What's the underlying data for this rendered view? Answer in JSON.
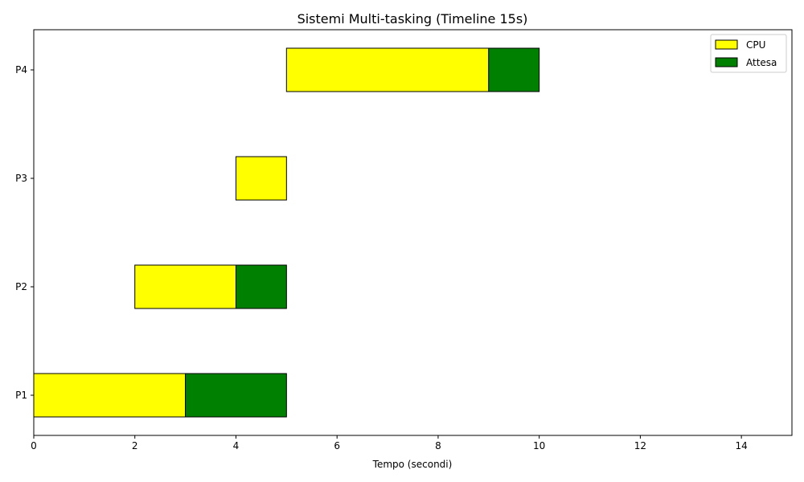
{
  "chart_data": {
    "type": "gantt",
    "title": "Sistemi Multi-tasking (Timeline 15s)",
    "xlabel": "Tempo (secondi)",
    "ylabel": "",
    "xlim": [
      0,
      15
    ],
    "x_ticks": [
      0,
      2,
      4,
      6,
      8,
      10,
      12,
      14
    ],
    "categories": [
      "P1",
      "P2",
      "P3",
      "P4"
    ],
    "grid": false,
    "legend_position": "top-right",
    "colors": {
      "CPU": "#ffff00",
      "Attesa": "#008000",
      "edge": "#000000"
    },
    "series": [
      {
        "name": "CPU",
        "segments": [
          {
            "process": "P1",
            "start": 0,
            "end": 3
          },
          {
            "process": "P2",
            "start": 2,
            "end": 4
          },
          {
            "process": "P3",
            "start": 4,
            "end": 5
          },
          {
            "process": "P4",
            "start": 5,
            "end": 9
          }
        ]
      },
      {
        "name": "Attesa",
        "segments": [
          {
            "process": "P1",
            "start": 3,
            "end": 5
          },
          {
            "process": "P2",
            "start": 4,
            "end": 5
          },
          {
            "process": "P4",
            "start": 9,
            "end": 10
          }
        ]
      }
    ]
  }
}
